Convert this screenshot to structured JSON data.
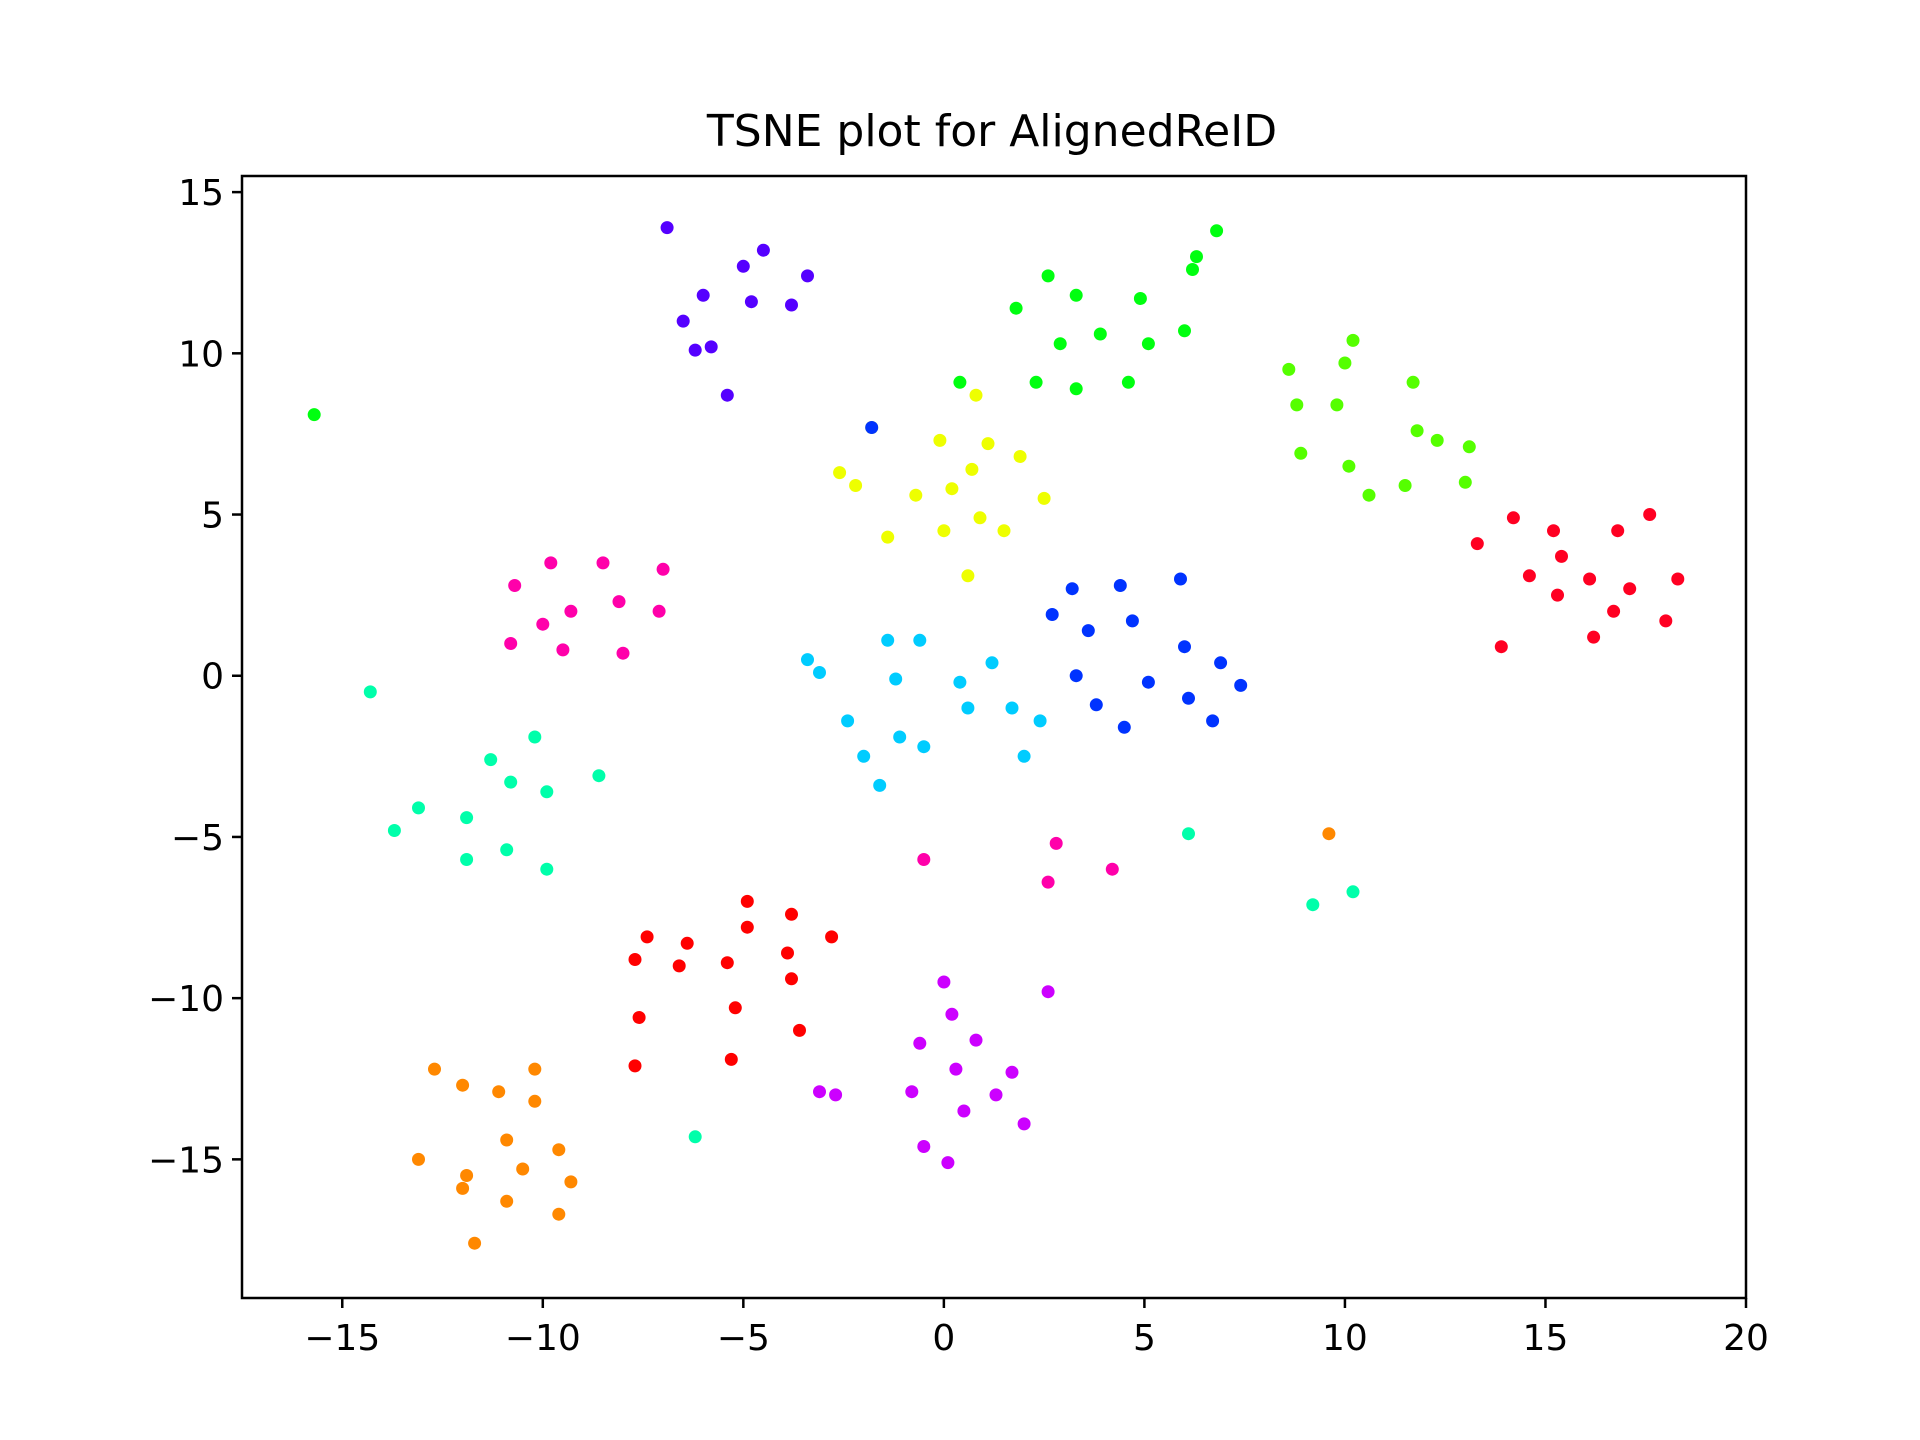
{
  "chart_data": {
    "type": "scatter",
    "title": "TSNE plot for AlignedReID",
    "xlabel": "",
    "ylabel": "",
    "xlim": [
      -17.5,
      20
    ],
    "ylim": [
      -19.3,
      15.5
    ],
    "xticks": [
      -15,
      -10,
      -5,
      0,
      5,
      10,
      15,
      20
    ],
    "xtick_labels": [
      "−15",
      "−10",
      "−5",
      "0",
      "5",
      "10",
      "15",
      "20"
    ],
    "yticks": [
      -15,
      -10,
      -5,
      0,
      5,
      10,
      15
    ],
    "ytick_labels": [
      "−15",
      "−10",
      "−5",
      "0",
      "5",
      "10",
      "15"
    ],
    "grid": false,
    "legend": "none",
    "series": [
      {
        "color": "#5500ff",
        "points": [
          [
            -6.9,
            13.9
          ],
          [
            -5.0,
            12.7
          ],
          [
            -4.5,
            13.2
          ],
          [
            -3.4,
            12.4
          ],
          [
            -6.0,
            11.8
          ],
          [
            -4.8,
            11.6
          ],
          [
            -3.8,
            11.5
          ],
          [
            -6.5,
            11.0
          ],
          [
            -6.2,
            10.1
          ],
          [
            -5.8,
            10.2
          ],
          [
            -5.4,
            8.7
          ]
        ]
      },
      {
        "color": "#00ff10",
        "points": [
          [
            -15.7,
            8.1
          ],
          [
            0.4,
            9.1
          ],
          [
            1.8,
            11.4
          ],
          [
            2.6,
            12.4
          ],
          [
            3.3,
            11.8
          ],
          [
            2.9,
            10.3
          ],
          [
            3.9,
            10.6
          ],
          [
            2.3,
            9.1
          ],
          [
            3.3,
            8.9
          ],
          [
            4.9,
            11.7
          ],
          [
            5.1,
            10.3
          ],
          [
            4.6,
            9.1
          ],
          [
            6.0,
            10.7
          ],
          [
            6.2,
            12.6
          ],
          [
            6.3,
            13.0
          ],
          [
            6.8,
            13.8
          ]
        ]
      },
      {
        "color": "#55ff00",
        "points": [
          [
            8.6,
            9.5
          ],
          [
            8.8,
            8.4
          ],
          [
            8.9,
            6.9
          ],
          [
            9.8,
            8.4
          ],
          [
            10.0,
            9.7
          ],
          [
            10.2,
            10.4
          ],
          [
            10.1,
            6.5
          ],
          [
            10.6,
            5.6
          ],
          [
            11.5,
            5.9
          ],
          [
            11.7,
            9.1
          ],
          [
            11.8,
            7.6
          ],
          [
            12.3,
            7.3
          ],
          [
            13.1,
            7.1
          ],
          [
            13.0,
            6.0
          ]
        ]
      },
      {
        "color": "#eeff00",
        "points": [
          [
            0.8,
            8.7
          ],
          [
            -1.8,
            7.7
          ],
          [
            -2.6,
            6.3
          ],
          [
            -2.2,
            5.9
          ],
          [
            -0.1,
            7.3
          ],
          [
            0.2,
            5.8
          ],
          [
            -0.7,
            5.6
          ],
          [
            0.7,
            6.4
          ],
          [
            1.1,
            7.2
          ],
          [
            1.9,
            6.8
          ],
          [
            0.0,
            4.5
          ],
          [
            0.9,
            4.9
          ],
          [
            1.5,
            4.5
          ],
          [
            2.5,
            5.5
          ],
          [
            -1.4,
            4.3
          ],
          [
            0.6,
            3.1
          ]
        ]
      },
      {
        "color": "#0033ff",
        "points": [
          [
            -1.8,
            7.7
          ],
          [
            2.7,
            1.9
          ],
          [
            3.2,
            2.7
          ],
          [
            3.6,
            1.4
          ],
          [
            4.4,
            2.8
          ],
          [
            4.7,
            1.7
          ],
          [
            5.9,
            3.0
          ],
          [
            6.0,
            0.9
          ],
          [
            6.9,
            0.4
          ],
          [
            3.3,
            0.0
          ],
          [
            3.8,
            -0.9
          ],
          [
            5.1,
            -0.2
          ],
          [
            6.1,
            -0.7
          ],
          [
            7.4,
            -0.3
          ],
          [
            4.5,
            -1.6
          ],
          [
            6.7,
            -1.4
          ]
        ]
      },
      {
        "color": "#00ccff",
        "points": [
          [
            -3.4,
            0.5
          ],
          [
            -3.1,
            0.1
          ],
          [
            -1.4,
            1.1
          ],
          [
            -0.6,
            1.1
          ],
          [
            -1.2,
            -0.1
          ],
          [
            0.4,
            -0.2
          ],
          [
            1.2,
            0.4
          ],
          [
            -2.4,
            -1.4
          ],
          [
            -1.1,
            -1.9
          ],
          [
            -0.5,
            -2.2
          ],
          [
            0.6,
            -1.0
          ],
          [
            1.7,
            -1.0
          ],
          [
            2.4,
            -1.4
          ],
          [
            -2.0,
            -2.5
          ],
          [
            2.0,
            -2.5
          ],
          [
            -1.6,
            -3.4
          ]
        ]
      },
      {
        "color": "#00ffaa",
        "points": [
          [
            -14.3,
            -0.5
          ],
          [
            -13.7,
            -4.8
          ],
          [
            -13.1,
            -4.1
          ],
          [
            -11.9,
            -4.4
          ],
          [
            -11.9,
            -5.7
          ],
          [
            -11.3,
            -2.6
          ],
          [
            -10.8,
            -3.3
          ],
          [
            -10.9,
            -5.4
          ],
          [
            -10.2,
            -1.9
          ],
          [
            -9.9,
            -3.6
          ],
          [
            -9.9,
            -6.0
          ],
          [
            -8.6,
            -3.1
          ],
          [
            6.1,
            -4.9
          ],
          [
            9.2,
            -7.1
          ],
          [
            10.2,
            -6.7
          ],
          [
            -6.2,
            -14.3
          ]
        ]
      },
      {
        "color": "#ff00aa",
        "points": [
          [
            -10.7,
            2.8
          ],
          [
            -9.8,
            3.5
          ],
          [
            -8.5,
            3.5
          ],
          [
            -7.0,
            3.3
          ],
          [
            -10.0,
            1.6
          ],
          [
            -9.3,
            2.0
          ],
          [
            -8.1,
            2.3
          ],
          [
            -7.1,
            2.0
          ],
          [
            -10.8,
            1.0
          ],
          [
            -9.5,
            0.8
          ],
          [
            -8.0,
            0.7
          ],
          [
            -0.5,
            -5.7
          ],
          [
            2.8,
            -5.2
          ],
          [
            4.2,
            -6.0
          ],
          [
            2.6,
            -6.4
          ]
        ]
      },
      {
        "color": "#ff0000",
        "points": [
          [
            -7.7,
            -8.8
          ],
          [
            -7.4,
            -8.1
          ],
          [
            -6.6,
            -9.0
          ],
          [
            -6.4,
            -8.3
          ],
          [
            -5.4,
            -8.9
          ],
          [
            -4.9,
            -7.0
          ],
          [
            -4.9,
            -7.8
          ],
          [
            -3.8,
            -7.4
          ],
          [
            -3.9,
            -8.6
          ],
          [
            -3.8,
            -9.4
          ],
          [
            -2.8,
            -8.1
          ],
          [
            -7.6,
            -10.6
          ],
          [
            -5.2,
            -10.3
          ],
          [
            -3.6,
            -11.0
          ],
          [
            -7.7,
            -12.1
          ],
          [
            -5.3,
            -11.9
          ]
        ]
      },
      {
        "color": "#ff0022",
        "points": [
          [
            13.3,
            4.1
          ],
          [
            14.2,
            4.9
          ],
          [
            15.2,
            4.5
          ],
          [
            15.4,
            3.7
          ],
          [
            14.6,
            3.1
          ],
          [
            15.3,
            2.5
          ],
          [
            16.1,
            3.0
          ],
          [
            16.8,
            4.5
          ],
          [
            17.6,
            5.0
          ],
          [
            17.1,
            2.7
          ],
          [
            18.3,
            3.0
          ],
          [
            16.7,
            2.0
          ],
          [
            16.2,
            1.2
          ],
          [
            18.0,
            1.7
          ],
          [
            13.9,
            0.9
          ]
        ]
      },
      {
        "color": "#cc00ff",
        "points": [
          [
            0.0,
            -9.5
          ],
          [
            0.2,
            -10.5
          ],
          [
            -0.6,
            -11.4
          ],
          [
            0.8,
            -11.3
          ],
          [
            0.3,
            -12.2
          ],
          [
            1.7,
            -12.3
          ],
          [
            2.6,
            -9.8
          ],
          [
            -3.1,
            -12.9
          ],
          [
            -2.7,
            -13.0
          ],
          [
            -0.8,
            -12.9
          ],
          [
            1.3,
            -13.0
          ],
          [
            0.5,
            -13.5
          ],
          [
            2.0,
            -13.9
          ],
          [
            -0.5,
            -14.6
          ],
          [
            0.1,
            -15.1
          ]
        ]
      },
      {
        "color": "#ff8800",
        "points": [
          [
            9.6,
            -4.9
          ],
          [
            -12.7,
            -12.2
          ],
          [
            -12.0,
            -12.7
          ],
          [
            -11.1,
            -12.9
          ],
          [
            -10.2,
            -12.2
          ],
          [
            -10.2,
            -13.2
          ],
          [
            -13.1,
            -15.0
          ],
          [
            -10.9,
            -14.4
          ],
          [
            -9.6,
            -14.7
          ],
          [
            -11.9,
            -15.5
          ],
          [
            -10.5,
            -15.3
          ],
          [
            -9.3,
            -15.7
          ],
          [
            -12.0,
            -15.9
          ],
          [
            -10.9,
            -16.3
          ],
          [
            -9.6,
            -16.7
          ],
          [
            -11.7,
            -17.6
          ]
        ]
      }
    ]
  }
}
